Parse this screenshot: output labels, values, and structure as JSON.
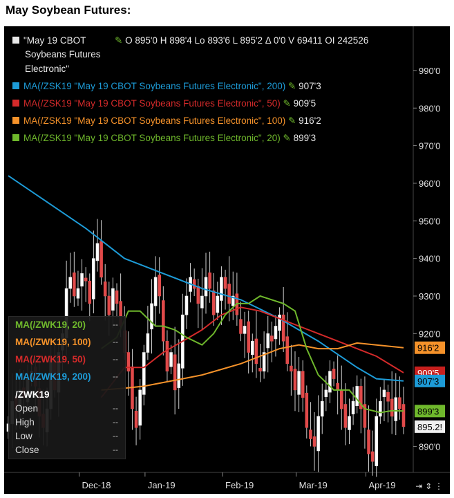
{
  "page_title": "May Soybean Futures:",
  "header": {
    "symbol_line1": "\"May 19 CBOT",
    "symbol_line2": "Soybeans Futures",
    "symbol_line3": "Electronic\"",
    "quote": "O 895'0  H 898'4  Lo 893'6  L 895'2  Δ 0'0  V 69411  OI 242526"
  },
  "ma_legend": [
    {
      "label": "MA(/ZSK19 \"May 19 CBOT Soybeans Futures Electronic\", 200)",
      "value": "907'3",
      "color": "#1d9bd7"
    },
    {
      "label": "MA(/ZSK19 \"May 19 CBOT Soybeans Futures Electronic\", 50)",
      "value": "909'5",
      "color": "#d42a2a"
    },
    {
      "label": "MA(/ZSK19 \"May 19 CBOT Soybeans Futures Electronic\", 100)",
      "value": "916'2",
      "color": "#f5922a"
    },
    {
      "label": "MA(/ZSK19 \"May 19 CBOT Soybeans Futures Electronic\", 20)",
      "value": "899'3",
      "color": "#6fb82c"
    }
  ],
  "ohlc_box": {
    "ma_rows": [
      {
        "label": "MA(/ZWK19, 20)",
        "value": "--",
        "color": "#6fb82c"
      },
      {
        "label": "MA(/ZWK19, 100)",
        "value": "--",
        "color": "#f5922a"
      },
      {
        "label": "MA(/ZWK19, 50)",
        "value": "--",
        "color": "#d42a2a"
      },
      {
        "label": "MA(/ZWK19, 200)",
        "value": "--",
        "color": "#1d9bd7"
      }
    ],
    "symbol": "/ZWK19",
    "fields": [
      {
        "label": "Open",
        "value": "--"
      },
      {
        "label": "High",
        "value": "--"
      },
      {
        "label": "Low",
        "value": "--"
      },
      {
        "label": "Close",
        "value": "--"
      }
    ]
  },
  "price_tags": [
    {
      "text": "916'2",
      "price": 916.25,
      "bg": "#f5922a",
      "fg": "#000000"
    },
    {
      "text": "909'5",
      "price": 909.6,
      "bg": "#c8201e",
      "fg": "#ffffff"
    },
    {
      "text": "907'3",
      "price": 907.4,
      "bg": "#1d9bd7",
      "fg": "#000000"
    },
    {
      "text": "899'3",
      "price": 899.4,
      "bg": "#6fb82c",
      "fg": "#000000"
    },
    {
      "text": "895.2!",
      "price": 895.25,
      "bg": "#f0f0f0",
      "fg": "#000000"
    }
  ],
  "chart_data": {
    "type": "line",
    "title": "May Soybean Futures:",
    "y_ticks": [
      "990'0",
      "980'0",
      "970'0",
      "960'0",
      "950'0",
      "940'0",
      "930'0",
      "920'0",
      "890'0"
    ],
    "y_tick_values": [
      990,
      980,
      970,
      960,
      950,
      940,
      930,
      920,
      890
    ],
    "ylim": [
      884,
      999
    ],
    "x_labels": [
      {
        "label": "Dec-18",
        "bar": 19
      },
      {
        "label": "Jan-19",
        "bar": 36
      },
      {
        "label": "Feb-19",
        "bar": 56
      },
      {
        "label": "Mar-19",
        "bar": 75
      },
      {
        "label": "Apr-19",
        "bar": 93
      }
    ],
    "bar_count": 103,
    "close": [
      896,
      902,
      900,
      905,
      903,
      908,
      910,
      906,
      898,
      895,
      900,
      913,
      905,
      915,
      920,
      932,
      935,
      930,
      932,
      936,
      934,
      928,
      940,
      944,
      935,
      930,
      925,
      932,
      928,
      922,
      915,
      910,
      900,
      895,
      905,
      915,
      920,
      928,
      935,
      930,
      918,
      910,
      915,
      905,
      912,
      925,
      930,
      935,
      932,
      928,
      930,
      935,
      932,
      925,
      930,
      935,
      932,
      928,
      930,
      925,
      920,
      922,
      915,
      918,
      912,
      910,
      915,
      920,
      918,
      922,
      925,
      918,
      912,
      910,
      905,
      910,
      903,
      895,
      892,
      890,
      898,
      902,
      905,
      910,
      908,
      905,
      900,
      895,
      898,
      902,
      906,
      900,
      895,
      888,
      886,
      898,
      902,
      905,
      902,
      898,
      903,
      900,
      895.25
    ],
    "series": [
      {
        "name": "MA(/ZSK19 \"May 19 CBOT Soybeans Futures Electronic\", 200)",
        "color": "#1d9bd7",
        "x": [
          0,
          10,
          20,
          30,
          40,
          50,
          60,
          70,
          80,
          90,
          95,
          102
        ],
        "values": [
          962,
          955,
          948,
          940,
          936,
          932,
          929,
          924,
          918,
          911,
          908,
          907.4
        ]
      },
      {
        "name": "MA(/ZSK19 \"May 19 CBOT Soybeans Futures Electronic\", 50)",
        "color": "#d42a2a",
        "x": [
          24,
          30,
          35,
          40,
          45,
          50,
          55,
          60,
          65,
          70,
          75,
          80,
          85,
          90,
          95,
          102
        ],
        "values": [
          903,
          911,
          911,
          915,
          918,
          921,
          925,
          927,
          926,
          924,
          922,
          920,
          918,
          916,
          914,
          909.6
        ]
      },
      {
        "name": "MA(/ZSK19 \"May 19 CBOT Soybeans Futures Electronic\", 100)",
        "color": "#f5922a",
        "x": [
          24,
          30,
          35,
          40,
          45,
          50,
          55,
          60,
          65,
          70,
          75,
          80,
          85,
          90,
          95,
          102
        ],
        "values": [
          905,
          905.5,
          906,
          907,
          908,
          909,
          910.5,
          912,
          914,
          916,
          917,
          916,
          916,
          917.5,
          917,
          916.25
        ]
      },
      {
        "name": "MA(/ZSK19 \"May 19 CBOT Soybeans Futures Electronic\", 20)",
        "color": "#6fb82c",
        "x": [
          24,
          28,
          31,
          34,
          36,
          38,
          40,
          43,
          46,
          50,
          53,
          56,
          59,
          62,
          65,
          68,
          71,
          74,
          77,
          80,
          84,
          88,
          92,
          96,
          99,
          102
        ],
        "values": [
          916,
          919,
          926,
          926,
          924,
          922,
          922,
          921,
          919,
          917,
          920,
          925,
          928,
          928,
          930,
          929,
          928,
          926,
          916,
          909,
          905,
          905,
          900,
          899,
          899.5,
          899.4
        ]
      }
    ]
  }
}
